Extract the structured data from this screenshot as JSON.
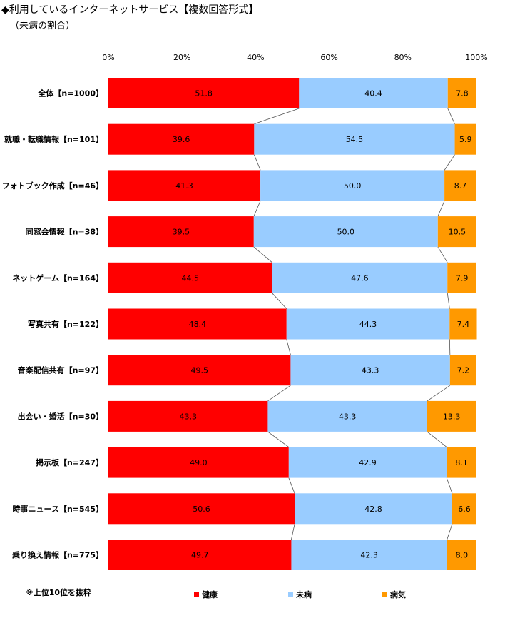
{
  "header": {
    "title": "◆利用しているインターネットサービス【複数回答形式】",
    "subtitle": "（未病の割合）"
  },
  "footnote": "※上位10位を抜粋",
  "colors": {
    "healthy": "#ff0000",
    "mibyo": "#99ccff",
    "sick": "#ff9900"
  },
  "chart_data": {
    "type": "bar",
    "orientation": "horizontal",
    "stacked": "percent",
    "x_ticks": [
      "0%",
      "20%",
      "40%",
      "60%",
      "80%",
      "100%"
    ],
    "xlim": [
      0,
      100
    ],
    "grid": false,
    "legend_position": "bottom",
    "connector_lines": true,
    "categories": [
      "全体【n=1000】",
      "就職・転職情報【n=101】",
      "フォトブック作成【n=46】",
      "同窓会情報【n=38】",
      "ネットゲーム【n=164】",
      "写真共有【n=122】",
      "音楽配信共有【n=97】",
      "出会い・婚活【n=30】",
      "掲示板【n=247】",
      "時事ニュース【n=545】",
      "乗り換え情報【n=775】"
    ],
    "series": [
      {
        "name": "健康",
        "color": "#ff0000",
        "values": [
          51.8,
          39.6,
          41.3,
          39.5,
          44.5,
          48.4,
          49.5,
          43.3,
          49.0,
          50.6,
          49.7
        ],
        "labels": [
          "51.8",
          "39.6",
          "41.3",
          "39.5",
          "44.5",
          "48.4",
          "49.5",
          "43.3",
          "49.0",
          "50.6",
          "49.7"
        ]
      },
      {
        "name": "未病",
        "color": "#99ccff",
        "values": [
          40.4,
          54.5,
          50.0,
          50.0,
          47.6,
          44.3,
          43.3,
          43.3,
          42.9,
          42.8,
          42.3
        ],
        "labels": [
          "40.4",
          "54.5",
          "50.0",
          "50.0",
          "47.6",
          "44.3",
          "43.3",
          "43.3",
          "42.9",
          "42.8",
          "42.3"
        ]
      },
      {
        "name": "病気",
        "color": "#ff9900",
        "values": [
          7.8,
          5.9,
          8.7,
          10.5,
          7.9,
          7.4,
          7.2,
          13.3,
          8.1,
          6.6,
          8.0
        ],
        "labels": [
          "7.8",
          "5.9",
          "8.7",
          "10.5",
          "7.9",
          "7.4",
          "7.2",
          "13.3",
          "8.1",
          "6.6",
          "8.0"
        ]
      }
    ]
  }
}
